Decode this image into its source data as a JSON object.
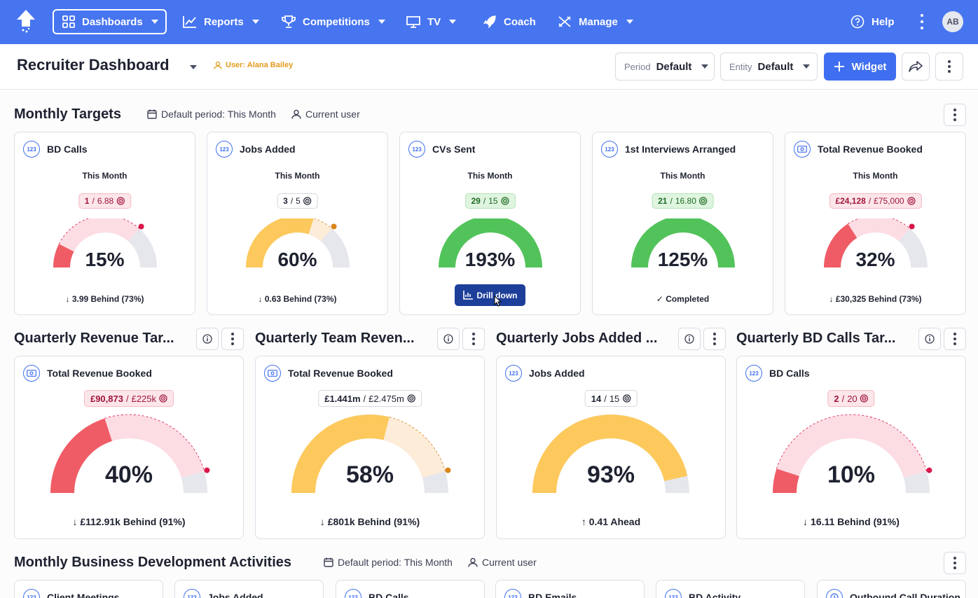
{
  "nav": {
    "items": [
      {
        "label": "Dashboards"
      },
      {
        "label": "Reports"
      },
      {
        "label": "Competitions"
      },
      {
        "label": "TV"
      },
      {
        "label": "Coach"
      },
      {
        "label": "Manage"
      }
    ],
    "help": "Help",
    "avatar": "AB"
  },
  "header": {
    "title": "Recruiter Dashboard",
    "user_tag": "User: Alana Bailey",
    "period_label": "Period",
    "period_value": "Default",
    "entity_label": "Entity",
    "entity_value": "Default",
    "widget_button": "Widget"
  },
  "monthly": {
    "title": "Monthly Targets",
    "period_meta": "Default period: This Month",
    "user_meta": "Current user",
    "cards": [
      {
        "title": "BD Calls",
        "period": "This Month",
        "actual": "1",
        "target": "6.88",
        "pct": "15%",
        "status": "3.99 Behind (73%)",
        "state": "red",
        "fill": 0.15,
        "expected": 0.73
      },
      {
        "title": "Jobs Added",
        "period": "This Month",
        "actual": "3",
        "target": "5",
        "pct": "60%",
        "status": "0.63 Behind (73%)",
        "state": "amber",
        "fill": 0.6,
        "expected": 0.73
      },
      {
        "title": "CVs Sent",
        "period": "This Month",
        "actual": "29",
        "target": "15",
        "pct": "193%",
        "status": "",
        "state": "green",
        "fill": 1.0,
        "expected": 0
      },
      {
        "title": "1st Interviews Arranged",
        "period": "This Month",
        "actual": "21",
        "target": "16.80",
        "pct": "125%",
        "status": "Completed",
        "state": "green",
        "fill": 1.0,
        "expected": 0
      },
      {
        "title": "Total Revenue Booked",
        "period": "This Month",
        "actual": "£24,128",
        "target": "£75,000",
        "pct": "32%",
        "status": "£30,325 Behind (73%)",
        "state": "red",
        "fill": 0.32,
        "expected": 0.73
      }
    ],
    "drill_label": "Drill down"
  },
  "quarterly": [
    {
      "section": "Quarterly Revenue Tar...",
      "title": "Total Revenue Booked",
      "actual": "£90,873",
      "target": "£225k",
      "pct": "40%",
      "status": "£112.91k Behind (91%)",
      "state": "red",
      "fill": 0.4,
      "expected": 0.91
    },
    {
      "section": "Quarterly Team Reven...",
      "title": "Total Revenue Booked",
      "actual": "£1.441m",
      "target": "£2.475m",
      "pct": "58%",
      "status": "£801k Behind (91%)",
      "state": "amber",
      "fill": 0.58,
      "expected": 0.91
    },
    {
      "section": "Quarterly Jobs Added ...",
      "title": "Jobs Added",
      "actual": "14",
      "target": "15",
      "pct": "93%",
      "status": "0.41 Ahead",
      "state": "amber-ahead",
      "fill": 0.93,
      "expected": 0
    },
    {
      "section": "Quarterly BD Calls Tar...",
      "title": "BD Calls",
      "actual": "2",
      "target": "20",
      "pct": "10%",
      "status": "16.11 Behind (91%)",
      "state": "red",
      "fill": 0.1,
      "expected": 0.91
    }
  ],
  "bd": {
    "title": "Monthly Business Development Activities",
    "period_meta": "Default period: This Month",
    "user_meta": "Current user",
    "cards": [
      "Client Meetings",
      "Jobs Added",
      "BD Calls",
      "BD Emails",
      "BD Activity",
      "Outbound Call Duration"
    ]
  },
  "colors": {
    "nav_bg": "#4775f0",
    "red": "#f05c66",
    "red_light": "#fddde4",
    "amber": "#fdc95c",
    "amber_light": "#fdecd8",
    "green": "#52c35a",
    "track": "#e6e7ec"
  }
}
